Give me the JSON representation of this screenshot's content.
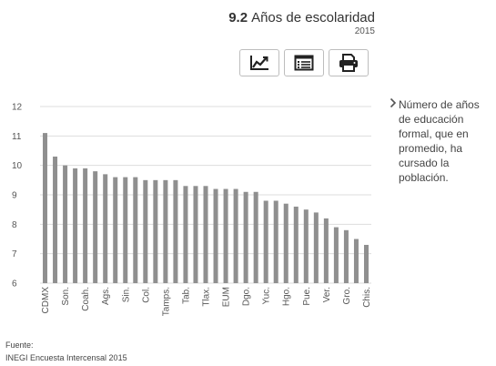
{
  "header": {
    "number": "9.2",
    "title": "Años de escolaridad",
    "year": "2015"
  },
  "toolbar": [
    {
      "name": "chart-view-button",
      "icon": "line-chart-icon"
    },
    {
      "name": "table-view-button",
      "icon": "table-list-icon"
    },
    {
      "name": "print-button",
      "icon": "printer-icon"
    }
  ],
  "note": {
    "icon": "chevron-right-icon",
    "text": "Número de años de educación formal, que en promedio, ha cursado la población."
  },
  "source": {
    "label": "Fuente:",
    "text": "INEGI Encuesta Intercensal 2015"
  },
  "colors": {
    "bar": "#8f8f8f",
    "grid": "#dddddd",
    "axis_text": "#555555"
  },
  "chart_data": {
    "type": "bar",
    "ylim": [
      6,
      12
    ],
    "yticks": [
      6,
      7,
      8,
      9,
      10,
      11,
      12
    ],
    "grid": true,
    "values": [
      11.1,
      10.3,
      10.0,
      9.9,
      9.9,
      9.8,
      9.7,
      9.6,
      9.6,
      9.6,
      9.5,
      9.5,
      9.5,
      9.5,
      9.3,
      9.3,
      9.3,
      9.2,
      9.2,
      9.2,
      9.1,
      9.1,
      8.8,
      8.8,
      8.7,
      8.6,
      8.5,
      8.4,
      8.2,
      7.9,
      7.8,
      7.5,
      7.3
    ],
    "tick_labels": [
      "CDMX",
      "",
      "Son.",
      "",
      "Coah.",
      "",
      "Ags.",
      "",
      "Sin.",
      "",
      "Col.",
      "",
      "Tamps.",
      "",
      "Tab.",
      "",
      "Tlax.",
      "",
      "EUM",
      "",
      "Dgo.",
      "",
      "Yuc.",
      "",
      "Hgo.",
      "",
      "Pue.",
      "",
      "Ver.",
      "",
      "Gro.",
      "",
      "Chis."
    ]
  }
}
